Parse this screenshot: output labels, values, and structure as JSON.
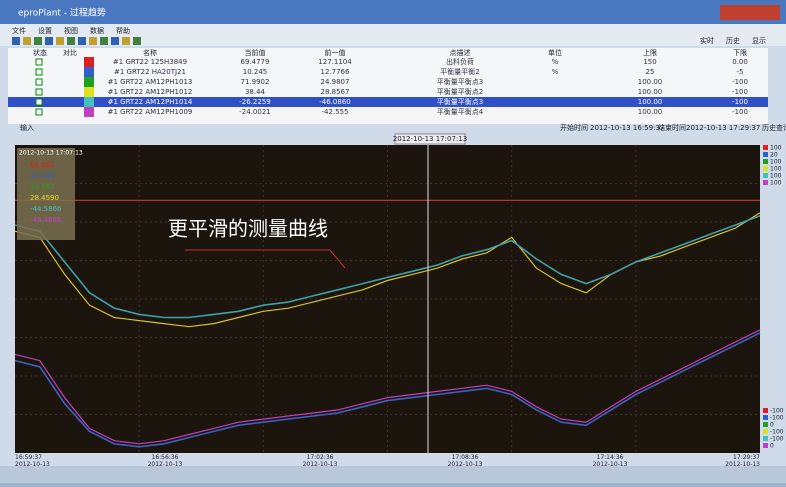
{
  "window": {
    "title": "eproPlant - 过程趋势"
  },
  "menu": [
    "文件",
    "设置",
    "视图",
    "数据",
    "帮助"
  ],
  "toolbar_right": [
    "实时",
    "历史",
    "显示"
  ],
  "table": {
    "headers": [
      "状态",
      "对比",
      "名称",
      "当前值",
      "前一值",
      "点描述",
      "单位",
      "上限",
      "下限"
    ],
    "rows": [
      [
        "#1 GRT22 125H3849",
        "69.4779",
        "127.1104",
        "出料负荷",
        "%",
        "150",
        "0.00"
      ],
      [
        "#1 GRT22 HA20TJ21",
        "10.245",
        "12.7766",
        "平衡量平衡2",
        "%",
        "25",
        "-5"
      ],
      [
        "#1 GRT22 AM12PH1013",
        "71.9902",
        "24.9807",
        "平衡量平衡点3",
        "",
        "100.00",
        "-100"
      ],
      [
        "#1 GRT22 AM12PH1012",
        "38.44",
        "28.8567",
        "平衡量平衡点2",
        "",
        "100.00",
        "-100"
      ],
      [
        "#1 GRT22 AM12PH1014",
        "-26.2259",
        "-46.0860",
        "平衡量平衡点3",
        "",
        "100.00",
        "-100"
      ],
      [
        "#1 GRT22 AM12PH1009",
        "-24.0021",
        "-42.555",
        "平衡量平衡点4",
        "",
        "100.00",
        "-100"
      ]
    ]
  },
  "range": {
    "input": "输入",
    "start_label": "开始时间",
    "start": "2012-10-13 16:59:37",
    "end_label": "结束时间",
    "end": "2012-10-13 17:29:37",
    "button": "历史查询"
  },
  "chart": {
    "type": "line",
    "cursor_time": "2012-10-13 17:07:13",
    "annotation": "更平滑的测量曲线",
    "legend_time": "2012-10-13 17:07:13",
    "legend_values": [
      "68.867",
      "10.346",
      "20.567",
      "28.4590",
      "-44.5866",
      "-48.4686"
    ],
    "ylim": [
      0,
      100
    ],
    "right_top": [
      "100",
      "20",
      "100",
      "100",
      "100",
      "100"
    ],
    "right_bottom": [
      "-100",
      "-100",
      "0",
      "-100",
      "-100",
      "0"
    ],
    "x_labels": [
      "16:59:37\n2012-10-13",
      "16:56:36\n2012-10-13",
      "17:02:36\n2012-10-13",
      "17:08:36\n2012-10-13",
      "17:14:36\n2012-10-13",
      "17:29:37\n2012-10-13"
    ],
    "series": [
      {
        "color": "#d8c030",
        "values": [
          72,
          70,
          58,
          48,
          44,
          43,
          42,
          41,
          42,
          44,
          46,
          47,
          49,
          51,
          53,
          56,
          58,
          60,
          63,
          65,
          70,
          60,
          55,
          52,
          58,
          62,
          64,
          67,
          70,
          73,
          78
        ]
      },
      {
        "color": "#40a0a8",
        "values": [
          74,
          72,
          62,
          52,
          47,
          45,
          44,
          44,
          45,
          46,
          48,
          49,
          51,
          53,
          55,
          57,
          59,
          61,
          64,
          66,
          69,
          63,
          58,
          55,
          58,
          62,
          65,
          68,
          71,
          74,
          77
        ]
      },
      {
        "color": "#c040c0",
        "values": [
          32,
          30,
          18,
          8,
          4,
          3,
          4,
          6,
          8,
          10,
          11,
          12,
          13,
          14,
          16,
          18,
          19,
          20,
          21,
          22,
          20,
          15,
          11,
          10,
          15,
          20,
          24,
          28,
          32,
          36,
          40
        ]
      },
      {
        "color": "#4060c0",
        "values": [
          30,
          28,
          16,
          7,
          3,
          2,
          3,
          5,
          7,
          9,
          10,
          11,
          12,
          13,
          15,
          17,
          18,
          19,
          20,
          21,
          19,
          14,
          10,
          9,
          14,
          19,
          23,
          27,
          31,
          35,
          39
        ]
      },
      {
        "color": "#c03030",
        "values": [
          82,
          82,
          82,
          82,
          82,
          82,
          82,
          82,
          82,
          82,
          82,
          82,
          82,
          82,
          82,
          82,
          82,
          82,
          82,
          82,
          82,
          82,
          82,
          82,
          82,
          82,
          82,
          82,
          82,
          82,
          82
        ]
      }
    ]
  }
}
